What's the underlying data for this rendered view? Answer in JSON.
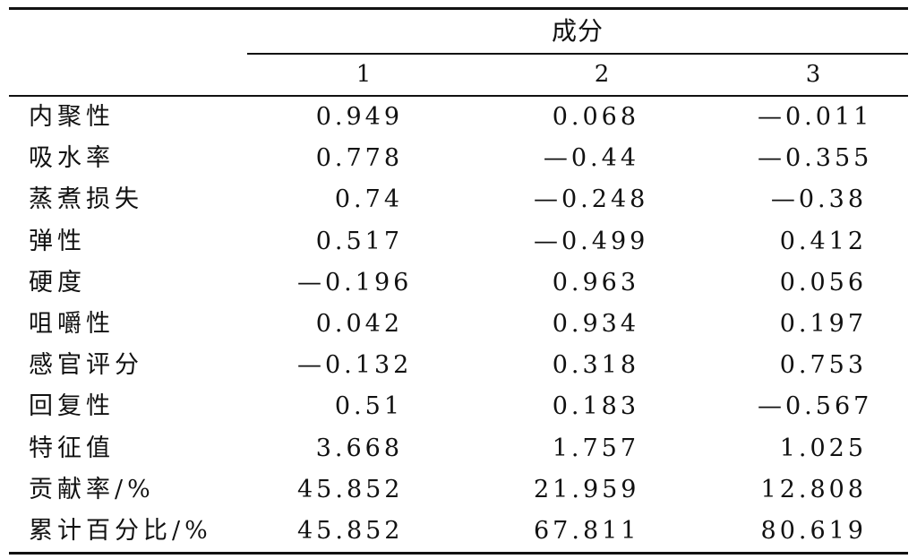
{
  "table": {
    "group_header": "成分",
    "columns": [
      "1",
      "2",
      "3"
    ],
    "rows": [
      {
        "label": "内聚性",
        "values": [
          "0.949",
          "0.068",
          "—0.011"
        ]
      },
      {
        "label": "吸水率",
        "values": [
          "0.778",
          "—0.44",
          "—0.355"
        ]
      },
      {
        "label": "蒸煮损失",
        "values": [
          "0.74",
          "—0.248",
          "—0.38"
        ]
      },
      {
        "label": "弹性",
        "values": [
          "0.517",
          "—0.499",
          "0.412"
        ]
      },
      {
        "label": "硬度",
        "values": [
          "—0.196",
          "0.963",
          "0.056"
        ]
      },
      {
        "label": "咀嚼性",
        "values": [
          "0.042",
          "0.934",
          "0.197"
        ]
      },
      {
        "label": "感官评分",
        "values": [
          "—0.132",
          "0.318",
          "0.753"
        ]
      },
      {
        "label": "回复性",
        "values": [
          "0.51",
          "0.183",
          "—0.567"
        ]
      },
      {
        "label": "特征值",
        "values": [
          "3.668",
          "1.757",
          "1.025"
        ]
      },
      {
        "label": "贡献率/%",
        "values": [
          "45.852",
          "21.959",
          "12.808"
        ]
      },
      {
        "label": "累计百分比/%",
        "values": [
          "45.852",
          "67.811",
          "80.619"
        ]
      }
    ]
  }
}
